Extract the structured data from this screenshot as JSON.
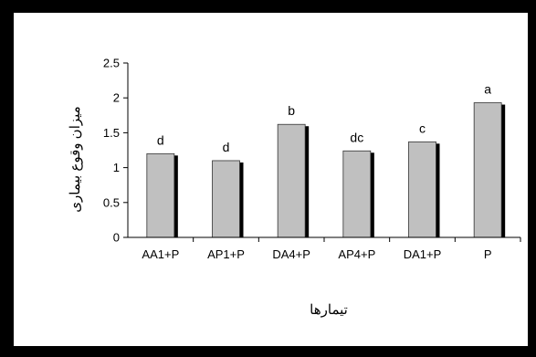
{
  "chart_data": {
    "type": "bar",
    "title": "",
    "xlabel": "تیمارها",
    "ylabel": "میزان وقوع بیماری",
    "categories": [
      "AA1+P",
      "AP1+P",
      "DA4+P",
      "AP4+P",
      "DA1+P",
      "P"
    ],
    "values": [
      1.2,
      1.1,
      1.62,
      1.24,
      1.37,
      1.93
    ],
    "letters": [
      "d",
      "d",
      "b",
      "dc",
      "c",
      "a"
    ],
    "ylim": [
      0,
      2.5
    ],
    "yticks": [
      "0",
      "0.5",
      "1",
      "1.5",
      "2",
      "2.5"
    ],
    "grid": false,
    "legend": "none",
    "colors": {
      "bar_fill": "#c0c0c0",
      "bar_shadow": "#000000",
      "bar_stroke": "#333333",
      "axis": "#000000",
      "frame": "#000000"
    }
  }
}
